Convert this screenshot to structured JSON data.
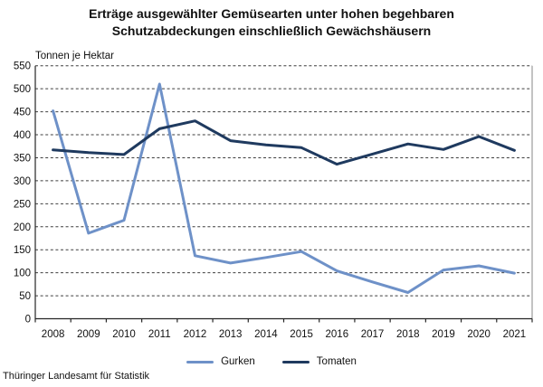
{
  "title": {
    "line1": "Erträge ausgewählter Gemüsearten unter hohen begehbaren",
    "line2": "Schutzabdeckungen einschließlich Gewächshäusern"
  },
  "unit_label": "Tonnen je Hektar",
  "source": "Thüringer Landesamt für Statistik",
  "colors": {
    "gurken_line": "#6E91C8",
    "tomaten_line": "#1F3A5F",
    "gridline": "#3f3f3f",
    "axis": "#262626"
  },
  "legend": [
    {
      "label": "Gurken",
      "color": "#6E91C8"
    },
    {
      "label": "Tomaten",
      "color": "#1F3A5F"
    }
  ],
  "chart_data": {
    "type": "line",
    "title": "Erträge ausgewählter Gemüsearten unter hohen begehbaren Schutzabdeckungen einschließlich Gewächshäusern",
    "unit": "Tonnen je Hektar",
    "x": [
      2008,
      2009,
      2010,
      2011,
      2012,
      2013,
      2014,
      2015,
      2016,
      2017,
      2018,
      2019,
      2020,
      2021
    ],
    "series": [
      {
        "name": "Gurken",
        "color": "#6E91C8",
        "values": [
          452,
          186,
          214,
          510,
          137,
          121,
          133,
          146,
          104,
          80,
          57,
          106,
          115,
          99
        ]
      },
      {
        "name": "Tomaten",
        "color": "#1F3A5F",
        "values": [
          367,
          361,
          357,
          413,
          430,
          387,
          378,
          372,
          336,
          358,
          380,
          368,
          396,
          366
        ]
      }
    ],
    "ylim": [
      0,
      550
    ],
    "ytick_step": 50,
    "grid": "horizontal-dashed",
    "legend_position": "bottom"
  }
}
